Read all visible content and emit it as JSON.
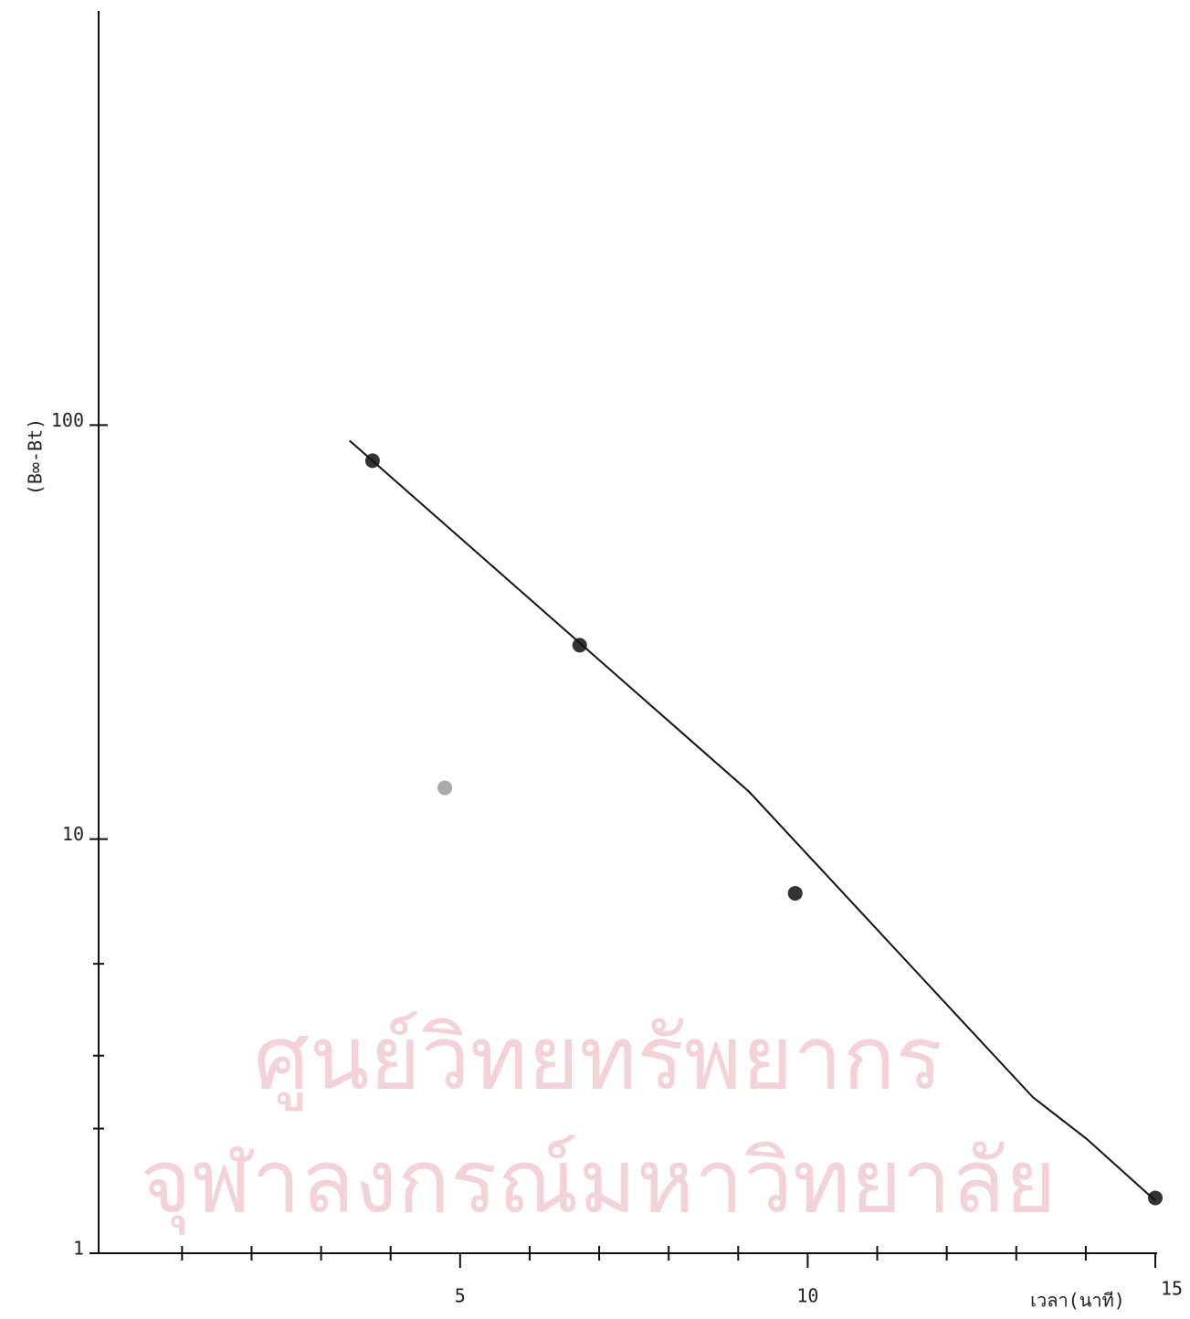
{
  "chart_data": {
    "type": "line",
    "x_label": "เวลา(นาที)",
    "y_label": "(B∞-Bt)",
    "watermark": [
      "ศูนย์วิทยทรัพยากร",
      "จุฬาลงกรณ์มหาวิทยาลัย"
    ],
    "log_y": true,
    "xlim": [
      -0.2,
      15
    ],
    "ylim": [
      1,
      1000
    ],
    "xticks": [
      5,
      10,
      15
    ],
    "xminor_ticks": [
      1,
      2,
      3,
      4,
      6,
      7,
      8,
      9,
      11,
      12,
      13,
      14
    ],
    "yticks": [
      1,
      10,
      100
    ],
    "yminor_ticks": [
      2,
      3,
      5
    ],
    "series": [
      {
        "kind": "points",
        "color": "#333",
        "x": [
          3.74,
          6.72,
          9.82,
          15
        ],
        "values": [
          82,
          29.4,
          7.4,
          1.36
        ]
      },
      {
        "kind": "points",
        "color": "#aaa",
        "x": [
          4.78
        ],
        "values": [
          13.3
        ]
      },
      {
        "kind": "line",
        "color": "#111",
        "x": [
          3.41,
          9.16,
          13.24,
          14.01,
          15
        ],
        "values": [
          91.7,
          13.0,
          2.38,
          1.89,
          1.34
        ]
      }
    ]
  }
}
